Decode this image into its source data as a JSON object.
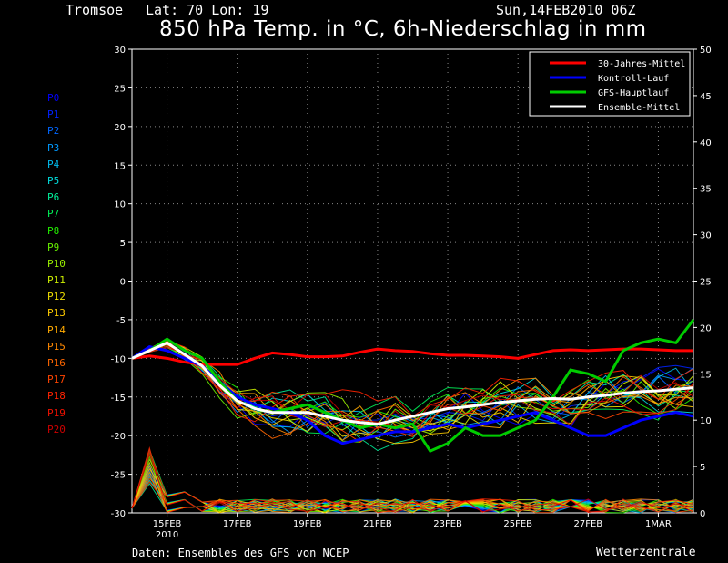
{
  "header": {
    "location": "Tromsoe",
    "latlon": "Lat: 70 Lon: 19",
    "datetime": "Sun,14FEB2010 06Z",
    "title": "850 hPa Temp. in °C, 6h-Niederschlag in mm"
  },
  "footer": {
    "source": "Daten: Ensembles des GFS von NCEP",
    "brand": "Wetterzentrale"
  },
  "colors": {
    "climate": "#ff0000",
    "control": "#0000ff",
    "gfs": "#00cc00",
    "ensmean": "#ffffff",
    "grid": "#888888"
  },
  "members": [
    {
      "label": "P0",
      "color": "#0000ff"
    },
    {
      "label": "P1",
      "color": "#0022ff"
    },
    {
      "label": "P2",
      "color": "#0066ff"
    },
    {
      "label": "P3",
      "color": "#0099ff"
    },
    {
      "label": "P4",
      "color": "#00bbee"
    },
    {
      "label": "P5",
      "color": "#00dddd"
    },
    {
      "label": "P6",
      "color": "#00ee99"
    },
    {
      "label": "P7",
      "color": "#00ee55"
    },
    {
      "label": "P8",
      "color": "#22ee00"
    },
    {
      "label": "P9",
      "color": "#66ee00"
    },
    {
      "label": "P10",
      "color": "#99ee00"
    },
    {
      "label": "P11",
      "color": "#ccee00"
    },
    {
      "label": "P12",
      "color": "#eedd00"
    },
    {
      "label": "P13",
      "color": "#ffcc00"
    },
    {
      "label": "P14",
      "color": "#ffaa00"
    },
    {
      "label": "P15",
      "color": "#ff8800"
    },
    {
      "label": "P16",
      "color": "#ff6600"
    },
    {
      "label": "P17",
      "color": "#ff4400"
    },
    {
      "label": "P18",
      "color": "#ff2200"
    },
    {
      "label": "P19",
      "color": "#ee1100"
    },
    {
      "label": "P20",
      "color": "#cc0000"
    }
  ],
  "chart_data": {
    "type": "line",
    "title": "850 hPa Temp. in °C, 6h-Niederschlag in mm",
    "x_ticks": [
      {
        "day": 1,
        "label": "15FEB",
        "sub": "2010"
      },
      {
        "day": 3,
        "label": "17FEB"
      },
      {
        "day": 5,
        "label": "19FEB"
      },
      {
        "day": 7,
        "label": "21FEB"
      },
      {
        "day": 9,
        "label": "23FEB"
      },
      {
        "day": 11,
        "label": "25FEB"
      },
      {
        "day": 13,
        "label": "27FEB"
      },
      {
        "day": 15,
        "label": "1MAR"
      }
    ],
    "xlim": [
      0,
      16
    ],
    "ylim_left": [
      -30,
      30
    ],
    "ylim_right": [
      0,
      50
    ],
    "yticks_left": [
      30,
      25,
      20,
      15,
      10,
      5,
      0,
      -5,
      -10,
      -15,
      -20,
      -25,
      -30
    ],
    "yticks_right": [
      50,
      45,
      40,
      35,
      30,
      25,
      20,
      15,
      10,
      5,
      0
    ],
    "legend": [
      {
        "name": "30-Jahres-Mittel",
        "color_key": "climate"
      },
      {
        "name": "Kontroll-Lauf",
        "color_key": "control"
      },
      {
        "name": "GFS-Hauptlauf",
        "color_key": "gfs"
      },
      {
        "name": "Ensemble-Mittel",
        "color_key": "ensmean"
      }
    ],
    "legend_position": "top-right",
    "grid": true,
    "series": [
      {
        "name": "30-Jahres-Mittel",
        "x": [
          0,
          0.5,
          1,
          1.5,
          2,
          2.5,
          3,
          3.5,
          4,
          4.5,
          5,
          5.5,
          6,
          6.5,
          7,
          7.5,
          8,
          8.5,
          9,
          9.5,
          10,
          10.5,
          11,
          11.5,
          12,
          12.5,
          13,
          13.5,
          14,
          14.5,
          15,
          15.5,
          16
        ],
        "y": [
          -10,
          -9.7,
          -10,
          -10.5,
          -10.8,
          -10.8,
          -10.8,
          -10,
          -9.3,
          -9.5,
          -9.8,
          -9.8,
          -9.7,
          -9.2,
          -8.8,
          -9,
          -9.1,
          -9.4,
          -9.6,
          -9.6,
          -9.7,
          -9.8,
          -10,
          -9.5,
          -9,
          -8.9,
          -9,
          -8.9,
          -8.8,
          -8.8,
          -8.9,
          -9,
          -9
        ]
      },
      {
        "name": "Kontroll-Lauf",
        "x": [
          0,
          0.5,
          1,
          1.5,
          2,
          2.5,
          3,
          3.5,
          4,
          4.5,
          5,
          5.5,
          6,
          6.5,
          7,
          7.5,
          8,
          8.5,
          9,
          9.5,
          10,
          10.5,
          11,
          11.5,
          12,
          12.5,
          13,
          13.5,
          14,
          14.5,
          15,
          15.5,
          16
        ],
        "y": [
          -10,
          -8.5,
          -9,
          -10,
          -11,
          -13,
          -15,
          -16,
          -16.5,
          -17,
          -18,
          -20,
          -21,
          -20.5,
          -20,
          -19.5,
          -19.5,
          -19,
          -18.5,
          -19,
          -18.5,
          -18,
          -17.5,
          -17,
          -18,
          -19,
          -20,
          -20,
          -19,
          -18,
          -17.5,
          -17,
          -17.5
        ]
      },
      {
        "name": "GFS-Hauptlauf",
        "x": [
          0,
          0.5,
          1,
          1.5,
          2,
          2.5,
          3,
          3.5,
          4,
          4.5,
          5,
          5.5,
          6,
          6.5,
          7,
          7.5,
          8,
          8.5,
          9,
          9.5,
          10,
          10.5,
          11,
          11.5,
          12,
          12.5,
          13,
          13.5,
          14,
          14.5,
          15,
          15.5,
          16
        ],
        "y": [
          -10,
          -9,
          -7.5,
          -9,
          -10,
          -13,
          -15.5,
          -16.5,
          -17,
          -16.5,
          -16,
          -17,
          -18,
          -19,
          -18.5,
          -19,
          -18.5,
          -22,
          -21,
          -19,
          -20,
          -20,
          -19,
          -18,
          -15,
          -11.5,
          -12,
          -13,
          -9,
          -8,
          -7.5,
          -8,
          -5
        ]
      },
      {
        "name": "Ensemble-Mittel",
        "x": [
          0,
          0.5,
          1,
          1.5,
          2,
          2.5,
          3,
          3.5,
          4,
          4.5,
          5,
          5.5,
          6,
          6.5,
          7,
          7.5,
          8,
          8.5,
          9,
          9.5,
          10,
          10.5,
          11,
          11.5,
          12,
          12.5,
          13,
          13.5,
          14,
          14.5,
          15,
          15.5,
          16
        ],
        "y": [
          -10,
          -9,
          -8,
          -9.5,
          -11,
          -13.5,
          -15.5,
          -16.5,
          -17,
          -17,
          -17,
          -17.5,
          -18,
          -18.3,
          -18.5,
          -18,
          -17.5,
          -17,
          -16.5,
          -16.3,
          -16,
          -15.7,
          -15.5,
          -15.3,
          -15.2,
          -15.3,
          -15,
          -14.8,
          -14.5,
          -14.3,
          -14.2,
          -14,
          -13.8
        ]
      }
    ]
  }
}
